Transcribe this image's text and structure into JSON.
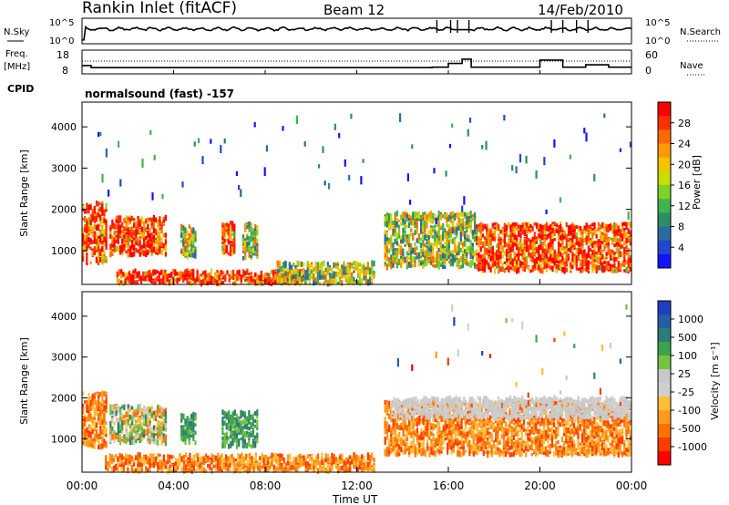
{
  "header": {
    "title": "Rankin Inlet (fitACF)",
    "beam": "Beam 12",
    "date": "14/Feb/2010"
  },
  "nsky_panel": {
    "left_label": "N.Sky",
    "left_ticks": [
      "10^5",
      "10^0"
    ],
    "right_label": "N.Search",
    "right_ticks": [
      "10^5",
      "10^0"
    ]
  },
  "freq_panel": {
    "left_label_line1": "Freq.",
    "left_label_line2": "[MHz]",
    "left_ticks": [
      "18",
      "8"
    ],
    "right_label": "Nave",
    "right_ticks": [
      "60",
      "0"
    ],
    "cpid_label": "CPID",
    "cpid_text": "normalsound (fast) -157"
  },
  "chart_data": [
    {
      "type": "heatmap",
      "name": "power",
      "ylabel": "Slant Range [km]",
      "ylim": [
        180,
        4600
      ],
      "yticks": [
        "1000",
        "2000",
        "3000",
        "4000"
      ],
      "xlim_hours": [
        0,
        24
      ],
      "colorbar": {
        "label": "Power [dB]",
        "ticks": [
          "28",
          "24",
          "20",
          "16",
          "12",
          "8",
          "4"
        ],
        "colors": [
          "#ff0000",
          "#ff3000",
          "#ff6a00",
          "#ff9a00",
          "#f5c400",
          "#c8dd00",
          "#7ed22a",
          "#3fb44f",
          "#2e8f66",
          "#2b6aa0",
          "#2346d0",
          "#1212ff"
        ]
      },
      "regions": [
        {
          "x": [
            0.0,
            1.1
          ],
          "y": [
            700,
            2150
          ],
          "level": "high"
        },
        {
          "x": [
            1.2,
            3.7
          ],
          "y": [
            900,
            1800
          ],
          "level": "high"
        },
        {
          "x": [
            4.3,
            5.0
          ],
          "y": [
            850,
            1600
          ],
          "level": "mid"
        },
        {
          "x": [
            6.1,
            6.7
          ],
          "y": [
            900,
            1650
          ],
          "level": "high"
        },
        {
          "x": [
            7.0,
            7.7
          ],
          "y": [
            800,
            1650
          ],
          "level": "mid"
        },
        {
          "x": [
            1.5,
            9.8
          ],
          "y": [
            200,
            500
          ],
          "level": "high"
        },
        {
          "x": [
            8.5,
            12.8
          ],
          "y": [
            200,
            700
          ],
          "level": "mid"
        },
        {
          "x": [
            13.2,
            17.2
          ],
          "y": [
            600,
            1900
          ],
          "level": "mid"
        },
        {
          "x": [
            17.2,
            24.0
          ],
          "y": [
            500,
            1650
          ],
          "level": "high"
        },
        {
          "x": [
            13.5,
            24.0
          ],
          "y": [
            1700,
            4300
          ],
          "level": "sparse"
        },
        {
          "x": [
            0.5,
            12.5
          ],
          "y": [
            2300,
            4300
          ],
          "level": "sparse"
        }
      ]
    },
    {
      "type": "heatmap",
      "name": "velocity",
      "ylabel": "Slant Range [km]",
      "ylim": [
        180,
        4600
      ],
      "yticks": [
        "1000",
        "2000",
        "3000",
        "4000"
      ],
      "xlim_hours": [
        0,
        24
      ],
      "xticks": [
        "00:00",
        "04:00",
        "08:00",
        "12:00",
        "16:00",
        "20:00",
        "00:00"
      ],
      "xlabel": "Time UT",
      "colorbar": {
        "label": "Velocity [m s⁻¹]",
        "ticks": [
          "1000",
          "500",
          "100",
          "25",
          "-25",
          "-100",
          "-500",
          "-1000"
        ],
        "colors": [
          "#1f3fbf",
          "#235ea8",
          "#2d7e76",
          "#3ea34f",
          "#73c440",
          "#c8c8c8",
          "#cfcfcf",
          "#ffbf3a",
          "#ff9a20",
          "#ff7200",
          "#ff3c00",
          "#ff0000"
        ]
      },
      "regions": [
        {
          "x": [
            0.0,
            1.1
          ],
          "y": [
            800,
            2150
          ],
          "level": "negative"
        },
        {
          "x": [
            1.2,
            3.7
          ],
          "y": [
            900,
            1800
          ],
          "level": "mixed"
        },
        {
          "x": [
            4.3,
            5.0
          ],
          "y": [
            900,
            1600
          ],
          "level": "positive"
        },
        {
          "x": [
            6.1,
            7.7
          ],
          "y": [
            800,
            1650
          ],
          "level": "positive"
        },
        {
          "x": [
            1.0,
            12.8
          ],
          "y": [
            200,
            600
          ],
          "level": "negative"
        },
        {
          "x": [
            13.2,
            24.0
          ],
          "y": [
            600,
            1900
          ],
          "level": "negative"
        },
        {
          "x": [
            13.5,
            24.0
          ],
          "y": [
            1500,
            2000
          ],
          "level": "near-zero"
        },
        {
          "x": [
            13.5,
            24.0
          ],
          "y": [
            2000,
            4300
          ],
          "level": "sparse"
        }
      ]
    }
  ]
}
